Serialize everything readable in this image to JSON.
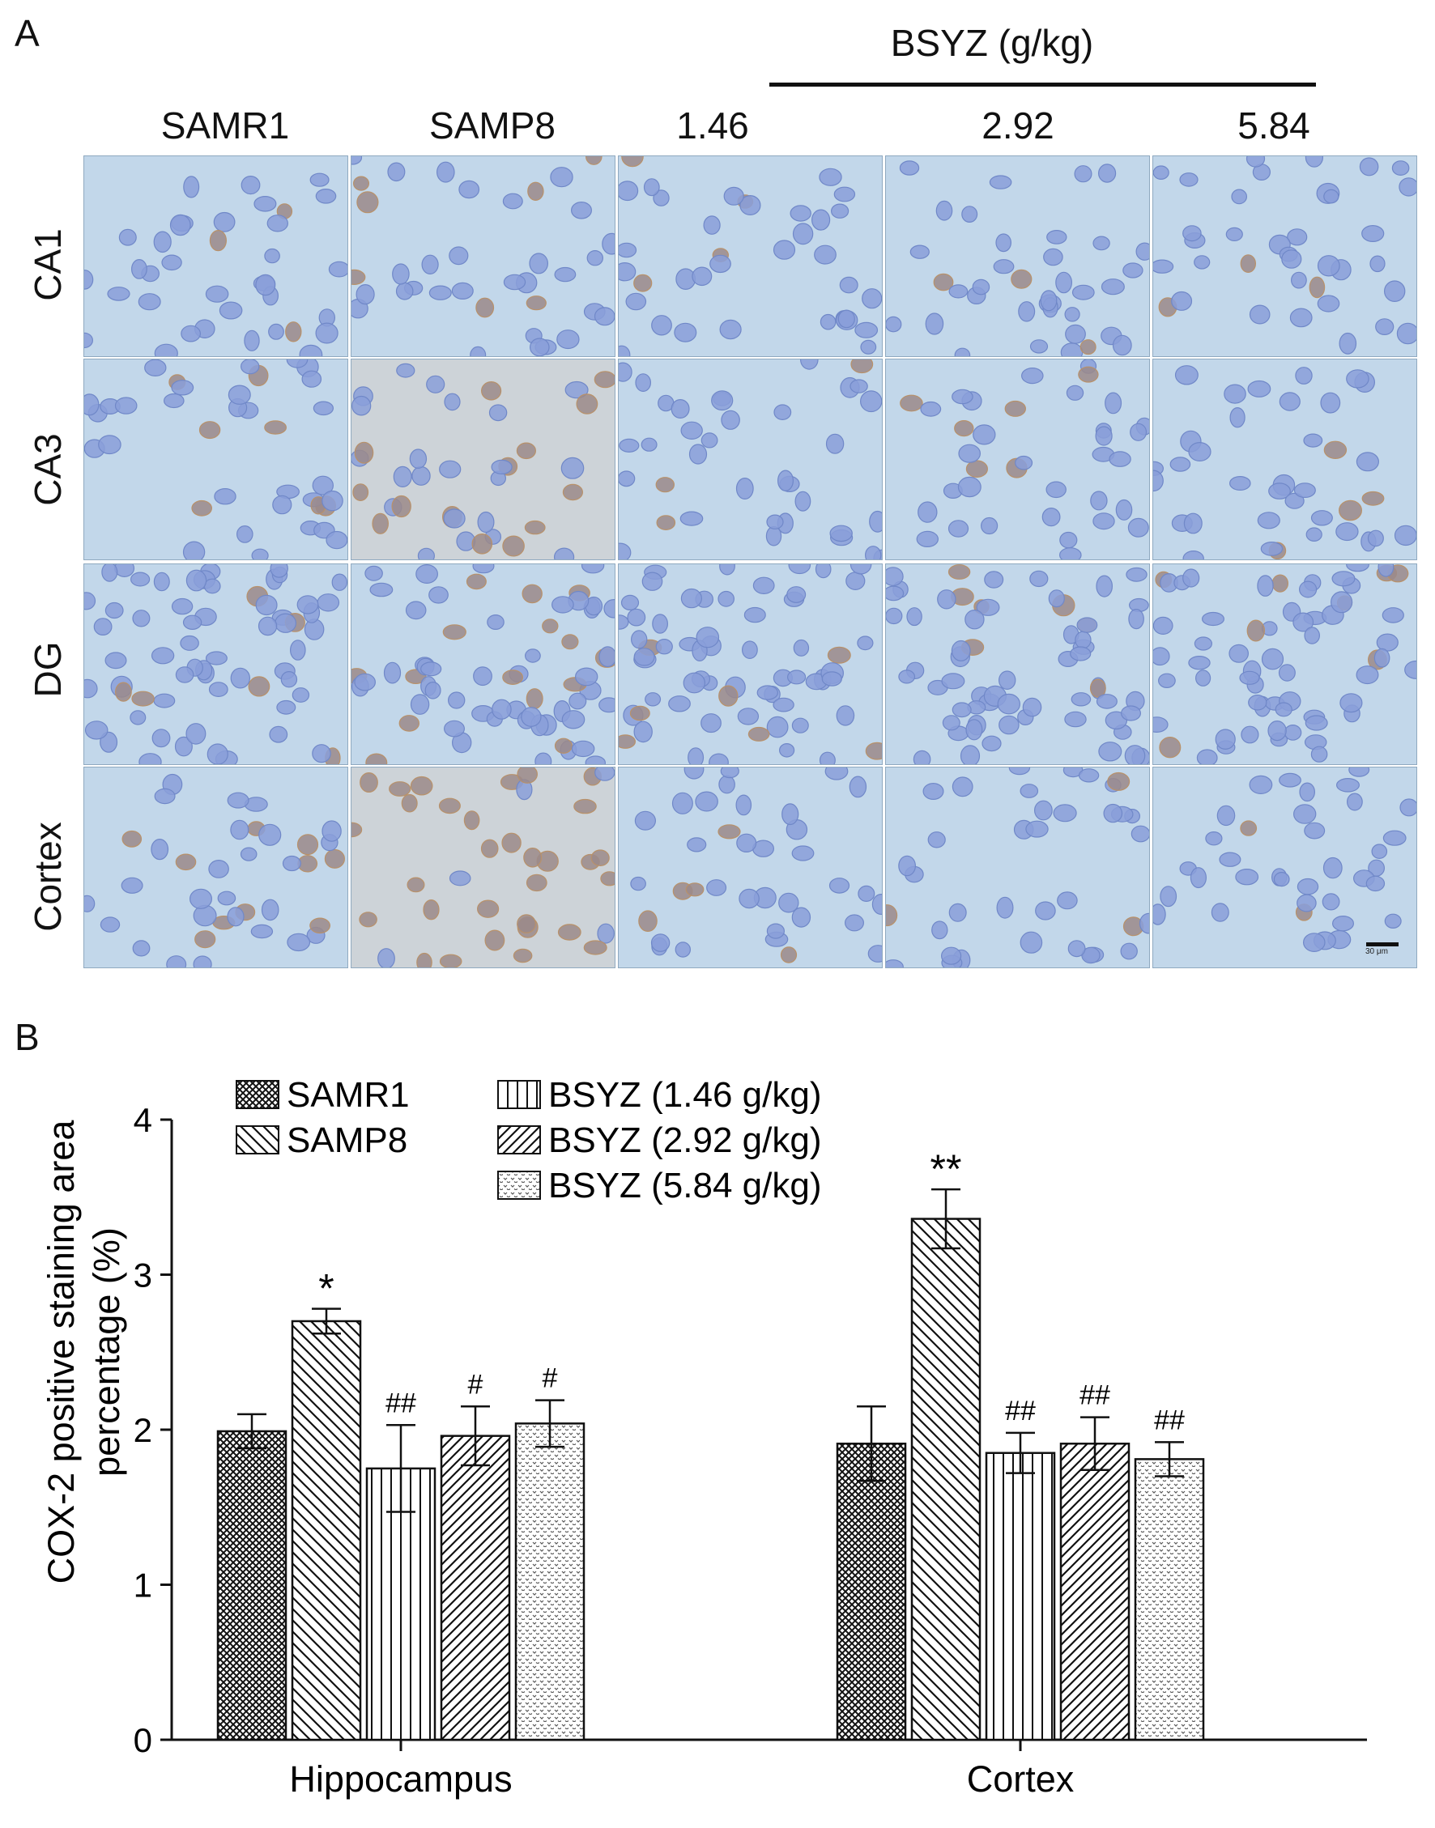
{
  "panel_a": {
    "label": "A",
    "group_header": "BSYZ (g/kg)",
    "columns": [
      "SAMR1",
      "SAMP8",
      "1.46",
      "2.92",
      "5.84"
    ],
    "rows": [
      "CA1",
      "CA3",
      "DG",
      "Cortex"
    ],
    "scale_bar_label": "30 μm"
  },
  "panel_b": {
    "label": "B"
  },
  "chart_data": {
    "type": "bar",
    "ylabel_lines": [
      "COX-2 positive staining area",
      "percentage (%)"
    ],
    "ylim": [
      0,
      4
    ],
    "yticks": [
      0,
      1,
      2,
      3,
      4
    ],
    "categories": [
      "Hippocampus",
      "Cortex"
    ],
    "legend_placement": "top-left",
    "series": [
      {
        "name": "SAMR1",
        "pattern": "crosshatch",
        "values": [
          1.99,
          1.91
        ],
        "errors": [
          0.11,
          0.24
        ],
        "marks": [
          "",
          ""
        ]
      },
      {
        "name": "SAMP8",
        "pattern": "diag-back",
        "values": [
          2.7,
          3.36
        ],
        "errors": [
          0.08,
          0.19
        ],
        "marks": [
          "*",
          "**"
        ]
      },
      {
        "name": "BSYZ (1.46 g/kg)",
        "pattern": "vertical",
        "values": [
          1.75,
          1.85
        ],
        "errors": [
          0.28,
          0.13
        ],
        "marks": [
          "##",
          "##"
        ]
      },
      {
        "name": "BSYZ (2.92 g/kg)",
        "pattern": "diag-fwd",
        "values": [
          1.96,
          1.91
        ],
        "errors": [
          0.19,
          0.17
        ],
        "marks": [
          "#",
          "##"
        ]
      },
      {
        "name": "BSYZ (5.84 g/kg)",
        "pattern": "dots",
        "values": [
          2.04,
          1.81
        ],
        "errors": [
          0.15,
          0.11
        ],
        "marks": [
          "#",
          "##"
        ]
      }
    ]
  }
}
